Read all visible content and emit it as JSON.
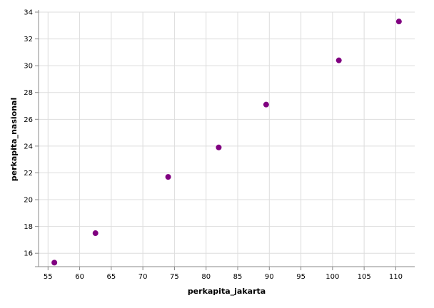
{
  "chart_data": {
    "type": "scatter",
    "xlabel": "perkapita_jakarta",
    "ylabel": "perkapita_nasional",
    "xlim": [
      53.5,
      113
    ],
    "ylim": [
      15,
      34
    ],
    "x_ticks": [
      55,
      60,
      65,
      70,
      75,
      80,
      85,
      90,
      95,
      100,
      105,
      110
    ],
    "y_ticks": [
      16,
      18,
      20,
      22,
      24,
      26,
      28,
      30,
      32,
      34
    ],
    "grid": true,
    "point_color": "#800080",
    "points": [
      {
        "x": 56.0,
        "y": 15.3
      },
      {
        "x": 62.5,
        "y": 17.5
      },
      {
        "x": 74.0,
        "y": 21.7
      },
      {
        "x": 82.0,
        "y": 23.9
      },
      {
        "x": 89.5,
        "y": 27.1
      },
      {
        "x": 101.0,
        "y": 30.4
      },
      {
        "x": 110.5,
        "y": 33.3
      }
    ]
  }
}
